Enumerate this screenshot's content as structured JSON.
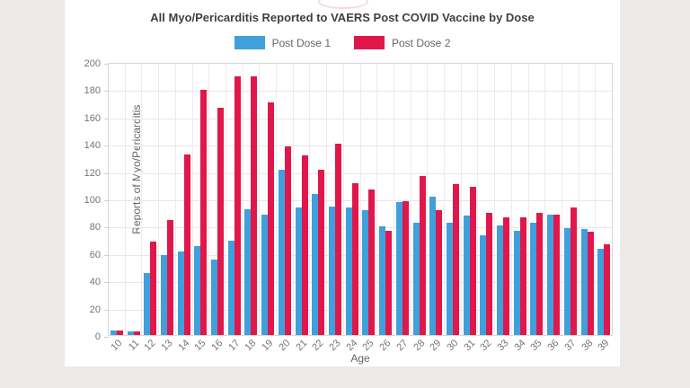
{
  "window": {
    "background_color": "#eceae8",
    "card_color": "#ffffff"
  },
  "chart_data": {
    "type": "bar",
    "title": "All Myo/Pericarditis Reported to VAERS Post COVID Vaccine by Dose",
    "xlabel": "Age",
    "ylabel": "Reports of Myo/Pericarditis",
    "ylim": [
      0,
      200
    ],
    "ytick_step": 20,
    "grid": true,
    "legend_position": "top",
    "categories": [
      "10",
      "11",
      "12",
      "13",
      "14",
      "15",
      "16",
      "17",
      "18",
      "19",
      "20",
      "21",
      "22",
      "23",
      "24",
      "25",
      "26",
      "27",
      "28",
      "29",
      "30",
      "31",
      "32",
      "33",
      "34",
      "35",
      "36",
      "37",
      "38",
      "39"
    ],
    "series": [
      {
        "name": "Post Dose 1",
        "color": "#3fa0dc",
        "values": [
          4,
          3,
          46,
          59,
          62,
          66,
          56,
          70,
          93,
          89,
          122,
          94,
          104,
          95,
          94,
          92,
          80,
          98,
          83,
          102,
          83,
          88,
          74,
          81,
          77,
          83,
          89,
          79,
          78,
          64
        ]
      },
      {
        "name": "Post Dose 2",
        "color": "#e0174b",
        "values": [
          4,
          3,
          69,
          85,
          133,
          180,
          167,
          190,
          190,
          171,
          139,
          132,
          122,
          141,
          112,
          107,
          77,
          99,
          117,
          92,
          111,
          109,
          90,
          87,
          87,
          90,
          89,
          94,
          76,
          67
        ]
      }
    ]
  }
}
